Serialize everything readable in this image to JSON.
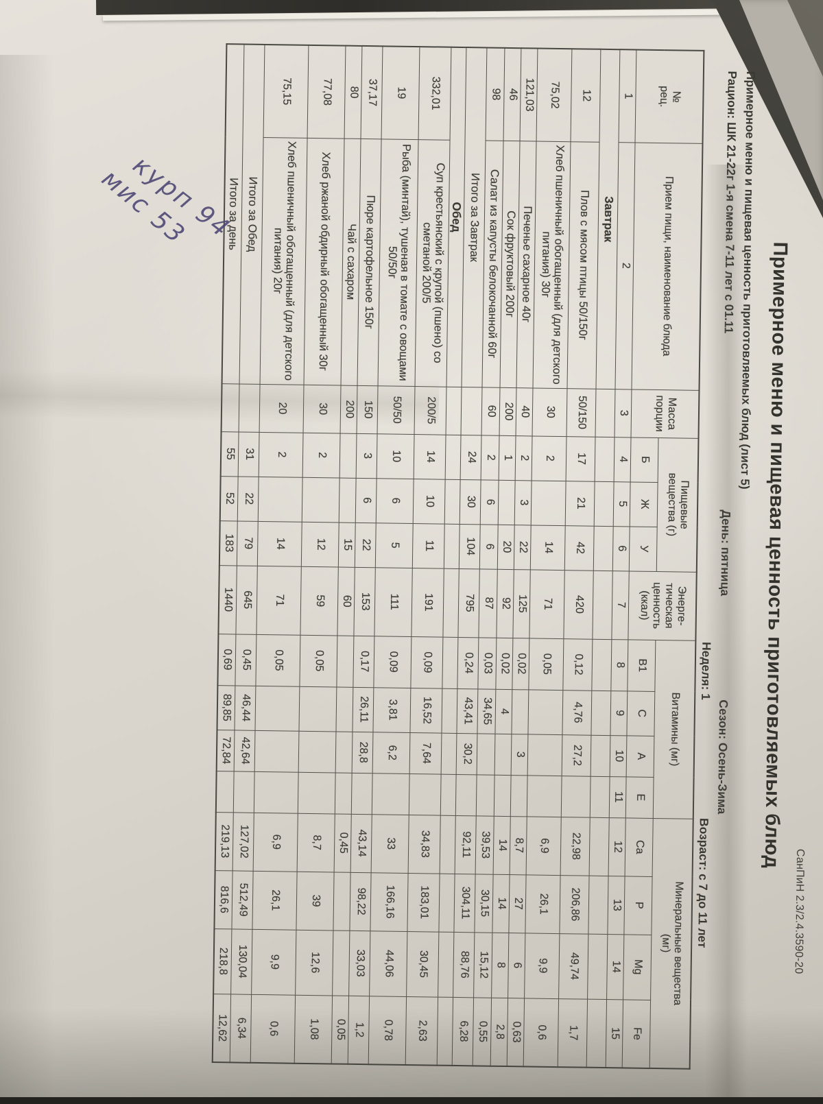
{
  "photo": {
    "stamp": "СанПиН 2.3/2.4.3590-20",
    "title": "Примерное меню и пищевая ценность приготовляемых блюд",
    "sheet_line": "Примерное меню и пищевая ценность приготовляемых блюд (лист 5)",
    "ration": "Рацион: ШК 21-22г 1-я смена 7-11 лет с 01.11",
    "day": "День: пятница",
    "season": "Сезон: Осень-Зима",
    "week": "Неделя: 1",
    "age": "Возраст: с 7 до 11 лет",
    "handwriting_line1": "курп 94",
    "handwriting_line2": "мис 53"
  },
  "table": {
    "headers": {
      "num": "№\nрец.",
      "dish": "Прием пищи, наименование блюда",
      "mass": "Масса\nпорции",
      "nutrients_group": "Пищевые\nвещества (г)",
      "nutrients": [
        "Б",
        "Ж",
        "У"
      ],
      "energy": "Энерге-\nтическая\nценность\n(ккал)",
      "vitamins_group": "Витамины (мг)",
      "vitamins": [
        "В1",
        "С",
        "А",
        "Е"
      ],
      "minerals_group": "Минеральные вещества\n(мг)",
      "minerals": [
        "Ca",
        "P",
        "Mg",
        "Fe"
      ]
    },
    "col_numbers": [
      "1",
      "2",
      "3",
      "4",
      "5",
      "6",
      "7",
      "8",
      "9",
      "10",
      "11",
      "12",
      "13",
      "14",
      "15"
    ],
    "rows": [
      {
        "type": "section",
        "label": "Завтрак"
      },
      {
        "type": "dish",
        "num": "12",
        "name": "Плов с  мясом птицы  50/150г",
        "mass": "50/150",
        "values": [
          "17",
          "21",
          "42",
          "420",
          "0,12",
          "4,76",
          "27,2",
          "",
          "22,98",
          "206,86",
          "49,74",
          "1,7"
        ]
      },
      {
        "type": "dish",
        "num": "75,02",
        "name": "Хлеб пшеничный обогащенный (для детского питания) 30г",
        "mass": "30",
        "values": [
          "2",
          "",
          "14",
          "71",
          "0,05",
          "",
          "",
          "",
          "6,9",
          "26,1",
          "9,9",
          "0,6"
        ]
      },
      {
        "type": "dish",
        "num": "121,03",
        "name": "Печенье сахарное 40г",
        "mass": "40",
        "values": [
          "2",
          "3",
          "22",
          "125",
          "0,02",
          "",
          "3",
          "",
          "8,7",
          "27",
          "6",
          "0,63"
        ]
      },
      {
        "type": "dish",
        "num": "46",
        "name": "Сок фруктовый 200г",
        "mass": "200",
        "values": [
          "1",
          "",
          "20",
          "92",
          "0,02",
          "4",
          "",
          "",
          "14",
          "14",
          "8",
          "2,8"
        ]
      },
      {
        "type": "dish",
        "num": "98",
        "name": "Салат из капусты белокочанной 60г",
        "mass": "60",
        "values": [
          "2",
          "6",
          "6",
          "87",
          "0,03",
          "34,65",
          "",
          "",
          "39,53",
          "30,15",
          "15,12",
          "0,55"
        ]
      },
      {
        "type": "total",
        "label": "Итого за Завтрак",
        "values": [
          "24",
          "30",
          "104",
          "795",
          "0,24",
          "43,41",
          "30,2",
          "",
          "92,11",
          "304,11",
          "88,76",
          "6,28"
        ]
      },
      {
        "type": "section",
        "label": "Обед"
      },
      {
        "type": "dish",
        "num": "332,01",
        "name": "Суп крестьянский с крупой (пшено) со сметаной 200/5",
        "mass": "200/5",
        "values": [
          "14",
          "10",
          "11",
          "191",
          "0,09",
          "16,52",
          "7,64",
          "",
          "34,83",
          "183,01",
          "30,45",
          "2,63"
        ]
      },
      {
        "type": "dish",
        "num": "19",
        "name": "Рыба (минтай), тушеная в томате с овощами 50/50г",
        "mass": "50/50",
        "values": [
          "10",
          "6",
          "5",
          "111",
          "0,09",
          "3,81",
          "6,2",
          "",
          "33",
          "166,16",
          "44,06",
          "0,78"
        ]
      },
      {
        "type": "dish",
        "num": "37,17",
        "name": "Пюре картофельное 150г",
        "mass": "150",
        "values": [
          "3",
          "6",
          "22",
          "153",
          "0,17",
          "26,11",
          "28,8",
          "",
          "43,14",
          "98,22",
          "33,03",
          "1,2"
        ]
      },
      {
        "type": "dish",
        "num": "80",
        "name": "Чай с сахаром",
        "mass": "200",
        "values": [
          "",
          "",
          "15",
          "60",
          "",
          "",
          "",
          "",
          "0,45",
          "",
          "",
          "0,05"
        ]
      },
      {
        "type": "dish",
        "num": "77,08",
        "name": "Хлеб ржаной обдирный обогащенный 30г",
        "mass": "30",
        "values": [
          "2",
          "",
          "12",
          "59",
          "0,05",
          "",
          "",
          "",
          "8,7",
          "39",
          "12,6",
          "1,08"
        ]
      },
      {
        "type": "dish",
        "num": "75,15",
        "name": "Хлеб пшеничный обогащенный (для детского питания) 20г",
        "mass": "20",
        "values": [
          "2",
          "",
          "14",
          "71",
          "0,05",
          "",
          "",
          "",
          "6,9",
          "26,1",
          "9,9",
          "0,6"
        ]
      },
      {
        "type": "total",
        "label": "Итого за Обед",
        "values": [
          "31",
          "22",
          "79",
          "645",
          "0,45",
          "46,44",
          "42,64",
          "",
          "127,02",
          "512,49",
          "130,04",
          "6,34"
        ]
      },
      {
        "type": "total",
        "label": "Итого за день",
        "values": [
          "55",
          "52",
          "183",
          "1440",
          "0,69",
          "89,85",
          "72,84",
          "",
          "219,13",
          "816,6",
          "218,8",
          "12,62"
        ]
      }
    ]
  }
}
